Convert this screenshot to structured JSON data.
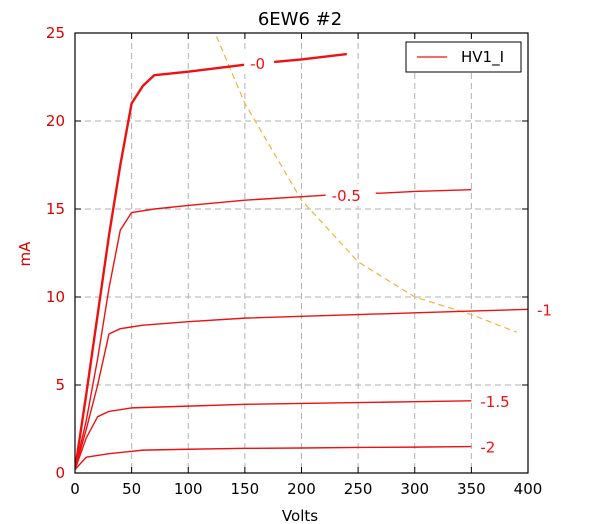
{
  "chart_data": {
    "type": "line",
    "title": "6EW6 #2",
    "xlabel": "Volts",
    "ylabel": "mA",
    "xlim": [
      0,
      400
    ],
    "ylim": [
      0,
      25
    ],
    "xticks": [
      "0",
      "50",
      "100",
      "150",
      "200",
      "250",
      "300",
      "350",
      "400"
    ],
    "yticks": [
      "0",
      "5",
      "10",
      "15",
      "20",
      "25"
    ],
    "grid": true,
    "legend": {
      "position": "top-right",
      "entries": [
        "HV1_I"
      ]
    },
    "colors": {
      "curves": "#ee1111",
      "load_line": "#f5b040",
      "grid": "#b0b0b0",
      "ylabel": "#dd0000"
    },
    "series": [
      {
        "label": "-0",
        "values_x": [
          0,
          10,
          20,
          30,
          40,
          50,
          60,
          70,
          100,
          150,
          200,
          240
        ],
        "values_y": [
          0.2,
          4.5,
          9.0,
          13.5,
          17.5,
          21.0,
          22.0,
          22.6,
          22.8,
          23.2,
          23.5,
          23.8
        ]
      },
      {
        "label": "-0.5",
        "values_x": [
          0,
          10,
          20,
          30,
          40,
          50,
          70,
          100,
          150,
          200,
          250,
          270,
          300,
          350
        ],
        "values_y": [
          0.2,
          3.0,
          6.5,
          10.5,
          13.8,
          14.8,
          15.0,
          15.2,
          15.5,
          15.7,
          15.9,
          15.9,
          16.0,
          16.1
        ]
      },
      {
        "label": "-1",
        "values_x": [
          0,
          10,
          20,
          30,
          40,
          60,
          100,
          150,
          200,
          250,
          300,
          350,
          400
        ],
        "values_y": [
          0.2,
          2.5,
          5.0,
          7.9,
          8.2,
          8.4,
          8.6,
          8.8,
          8.9,
          9.0,
          9.1,
          9.2,
          9.3
        ]
      },
      {
        "label": "-1.5",
        "values_x": [
          0,
          10,
          20,
          30,
          50,
          100,
          150,
          200,
          250,
          300,
          350
        ],
        "values_y": [
          0.2,
          2.0,
          3.2,
          3.5,
          3.7,
          3.8,
          3.9,
          3.95,
          4.0,
          4.05,
          4.1
        ]
      },
      {
        "label": "-2",
        "values_x": [
          0,
          10,
          30,
          60,
          100,
          150,
          200,
          250,
          300,
          350
        ],
        "values_y": [
          0.2,
          0.9,
          1.1,
          1.3,
          1.35,
          1.4,
          1.42,
          1.45,
          1.47,
          1.5
        ]
      }
    ],
    "load_line": {
      "style": "dashed",
      "values_x": [
        125,
        150,
        200,
        250,
        300,
        350,
        390
      ],
      "values_y": [
        24.8,
        21.0,
        15.5,
        12.0,
        10.0,
        9.0,
        8.0
      ]
    }
  }
}
